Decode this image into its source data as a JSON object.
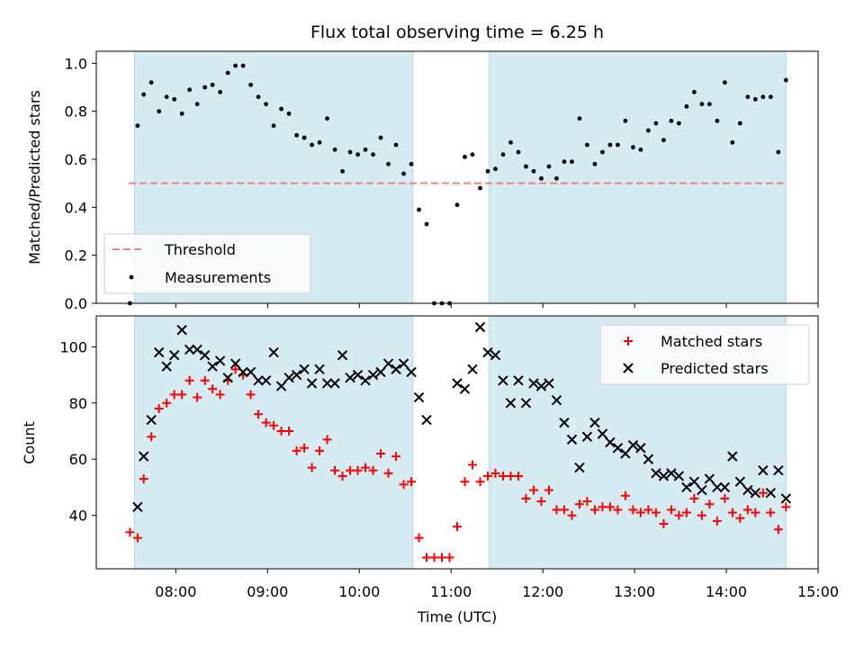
{
  "chart_data": [
    {
      "type": "scatter",
      "title": "Flux total observing time = 6.25 h",
      "xlabel": "",
      "ylabel": "Matched/Predicted stars",
      "xlim": [
        "07:08",
        "15:00"
      ],
      "ylim": [
        0,
        1.05
      ],
      "yticks": [
        "0.0",
        "0.2",
        "0.4",
        "0.6",
        "0.8",
        "1.0"
      ],
      "legend_position": "lower-left",
      "grid": false,
      "shaded_intervals": [
        [
          "07:33",
          "10:35"
        ],
        [
          "11:25",
          "14:39"
        ]
      ],
      "threshold": {
        "name": "Threshold",
        "value": 0.5,
        "color": "#f08080",
        "style": "dashed"
      },
      "series": [
        {
          "name": "Measurements",
          "marker": "dot",
          "color": "#000000",
          "points": [
            [
              "07:30",
              0.0
            ],
            [
              "07:35",
              0.74
            ],
            [
              "07:39",
              0.87
            ],
            [
              "07:44",
              0.92
            ],
            [
              "07:49",
              0.8
            ],
            [
              "07:54",
              0.86
            ],
            [
              "07:59",
              0.85
            ],
            [
              "08:04",
              0.79
            ],
            [
              "08:09",
              0.89
            ],
            [
              "08:14",
              0.83
            ],
            [
              "08:19",
              0.9
            ],
            [
              "08:24",
              0.91
            ],
            [
              "08:29",
              0.88
            ],
            [
              "08:34",
              0.96
            ],
            [
              "08:39",
              0.99
            ],
            [
              "08:44",
              0.99
            ],
            [
              "08:49",
              0.91
            ],
            [
              "08:54",
              0.86
            ],
            [
              "08:59",
              0.83
            ],
            [
              "09:04",
              0.74
            ],
            [
              "09:09",
              0.81
            ],
            [
              "09:14",
              0.79
            ],
            [
              "09:19",
              0.7
            ],
            [
              "09:24",
              0.69
            ],
            [
              "09:29",
              0.66
            ],
            [
              "09:34",
              0.67
            ],
            [
              "09:39",
              0.77
            ],
            [
              "09:44",
              0.64
            ],
            [
              "09:49",
              0.55
            ],
            [
              "09:54",
              0.63
            ],
            [
              "09:59",
              0.62
            ],
            [
              "10:04",
              0.64
            ],
            [
              "10:09",
              0.62
            ],
            [
              "10:14",
              0.69
            ],
            [
              "10:19",
              0.58
            ],
            [
              "10:24",
              0.66
            ],
            [
              "10:29",
              0.54
            ],
            [
              "10:34",
              0.58
            ],
            [
              "10:39",
              0.39
            ],
            [
              "10:44",
              0.33
            ],
            [
              "10:49",
              0.0
            ],
            [
              "10:54",
              0.0
            ],
            [
              "10:59",
              0.0
            ],
            [
              "11:04",
              0.41
            ],
            [
              "11:09",
              0.61
            ],
            [
              "11:14",
              0.62
            ],
            [
              "11:19",
              0.48
            ],
            [
              "11:24",
              0.55
            ],
            [
              "11:29",
              0.56
            ],
            [
              "11:34",
              0.62
            ],
            [
              "11:39",
              0.67
            ],
            [
              "11:44",
              0.63
            ],
            [
              "11:49",
              0.57
            ],
            [
              "11:54",
              0.55
            ],
            [
              "11:59",
              0.52
            ],
            [
              "12:04",
              0.57
            ],
            [
              "12:09",
              0.52
            ],
            [
              "12:14",
              0.59
            ],
            [
              "12:19",
              0.59
            ],
            [
              "12:24",
              0.77
            ],
            [
              "12:29",
              0.66
            ],
            [
              "12:34",
              0.58
            ],
            [
              "12:39",
              0.63
            ],
            [
              "12:44",
              0.66
            ],
            [
              "12:49",
              0.66
            ],
            [
              "12:54",
              0.76
            ],
            [
              "12:59",
              0.65
            ],
            [
              "13:04",
              0.64
            ],
            [
              "13:09",
              0.72
            ],
            [
              "13:14",
              0.75
            ],
            [
              "13:19",
              0.68
            ],
            [
              "13:24",
              0.76
            ],
            [
              "13:29",
              0.75
            ],
            [
              "13:34",
              0.82
            ],
            [
              "13:39",
              0.88
            ],
            [
              "13:44",
              0.83
            ],
            [
              "13:49",
              0.83
            ],
            [
              "13:54",
              0.76
            ],
            [
              "13:59",
              0.92
            ],
            [
              "14:04",
              0.67
            ],
            [
              "14:09",
              0.75
            ],
            [
              "14:14",
              0.86
            ],
            [
              "14:19",
              0.85
            ],
            [
              "14:24",
              0.86
            ],
            [
              "14:29",
              0.86
            ],
            [
              "14:34",
              0.63
            ],
            [
              "14:39",
              0.93
            ]
          ]
        }
      ]
    },
    {
      "type": "scatter",
      "title": "",
      "xlabel": "Time (UTC)",
      "ylabel": "Count",
      "xlim": [
        "07:08",
        "15:00"
      ],
      "ylim": [
        21,
        111
      ],
      "xticks": [
        "08:00",
        "09:00",
        "10:00",
        "11:00",
        "12:00",
        "13:00",
        "14:00",
        "15:00"
      ],
      "yticks": [
        "40",
        "60",
        "80",
        "100"
      ],
      "legend_position": "top-right",
      "grid": false,
      "shaded_intervals": [
        [
          "07:33",
          "10:35"
        ],
        [
          "11:25",
          "14:39"
        ]
      ],
      "series": [
        {
          "name": "Matched stars",
          "marker": "plus",
          "color": "#ff0000",
          "points": [
            [
              "07:30",
              34
            ],
            [
              "07:35",
              32
            ],
            [
              "07:39",
              53
            ],
            [
              "07:44",
              68
            ],
            [
              "07:49",
              78
            ],
            [
              "07:54",
              80
            ],
            [
              "07:59",
              83
            ],
            [
              "08:04",
              83
            ],
            [
              "08:09",
              88
            ],
            [
              "08:14",
              82
            ],
            [
              "08:19",
              88
            ],
            [
              "08:24",
              85
            ],
            [
              "08:29",
              83
            ],
            [
              "08:34",
              88
            ],
            [
              "08:39",
              92
            ],
            [
              "08:44",
              90
            ],
            [
              "08:49",
              83
            ],
            [
              "08:54",
              76
            ],
            [
              "08:59",
              73
            ],
            [
              "09:04",
              72
            ],
            [
              "09:09",
              70
            ],
            [
              "09:14",
              70
            ],
            [
              "09:19",
              63
            ],
            [
              "09:24",
              64
            ],
            [
              "09:29",
              57
            ],
            [
              "09:34",
              63
            ],
            [
              "09:39",
              67
            ],
            [
              "09:44",
              56
            ],
            [
              "09:49",
              54
            ],
            [
              "09:54",
              56
            ],
            [
              "09:59",
              56
            ],
            [
              "10:04",
              57
            ],
            [
              "10:09",
              56
            ],
            [
              "10:14",
              62
            ],
            [
              "10:19",
              55
            ],
            [
              "10:24",
              61
            ],
            [
              "10:29",
              51
            ],
            [
              "10:34",
              52
            ],
            [
              "10:39",
              32
            ],
            [
              "10:44",
              25
            ],
            [
              "10:49",
              25
            ],
            [
              "10:54",
              25
            ],
            [
              "10:59",
              25
            ],
            [
              "11:04",
              36
            ],
            [
              "11:09",
              52
            ],
            [
              "11:14",
              58
            ],
            [
              "11:19",
              52
            ],
            [
              "11:24",
              54
            ],
            [
              "11:29",
              55
            ],
            [
              "11:34",
              54
            ],
            [
              "11:39",
              54
            ],
            [
              "11:44",
              54
            ],
            [
              "11:49",
              46
            ],
            [
              "11:54",
              49
            ],
            [
              "11:59",
              45
            ],
            [
              "12:04",
              49
            ],
            [
              "12:09",
              42
            ],
            [
              "12:14",
              42
            ],
            [
              "12:19",
              40
            ],
            [
              "12:24",
              44
            ],
            [
              "12:29",
              45
            ],
            [
              "12:34",
              42
            ],
            [
              "12:39",
              43
            ],
            [
              "12:44",
              43
            ],
            [
              "12:49",
              42
            ],
            [
              "12:54",
              47
            ],
            [
              "12:59",
              42
            ],
            [
              "13:04",
              41
            ],
            [
              "13:09",
              42
            ],
            [
              "13:14",
              41
            ],
            [
              "13:19",
              37
            ],
            [
              "13:24",
              42
            ],
            [
              "13:29",
              40
            ],
            [
              "13:34",
              41
            ],
            [
              "13:39",
              46
            ],
            [
              "13:44",
              40
            ],
            [
              "13:49",
              44
            ],
            [
              "13:54",
              38
            ],
            [
              "13:59",
              46
            ],
            [
              "14:04",
              41
            ],
            [
              "14:09",
              39
            ],
            [
              "14:14",
              42
            ],
            [
              "14:19",
              41
            ],
            [
              "14:24",
              48
            ],
            [
              "14:29",
              41
            ],
            [
              "14:34",
              35
            ],
            [
              "14:39",
              43
            ]
          ]
        },
        {
          "name": "Predicted stars",
          "marker": "x",
          "color": "#000000",
          "points": [
            [
              "07:35",
              43
            ],
            [
              "07:39",
              61
            ],
            [
              "07:44",
              74
            ],
            [
              "07:49",
              98
            ],
            [
              "07:54",
              93
            ],
            [
              "07:59",
              97
            ],
            [
              "08:04",
              106
            ],
            [
              "08:09",
              99
            ],
            [
              "08:14",
              99
            ],
            [
              "08:19",
              97
            ],
            [
              "08:24",
              93
            ],
            [
              "08:29",
              95
            ],
            [
              "08:34",
              89
            ],
            [
              "08:39",
              94
            ],
            [
              "08:44",
              91
            ],
            [
              "08:49",
              91
            ],
            [
              "08:54",
              88
            ],
            [
              "08:59",
              88
            ],
            [
              "09:04",
              98
            ],
            [
              "09:09",
              86
            ],
            [
              "09:14",
              89
            ],
            [
              "09:19",
              90
            ],
            [
              "09:24",
              92
            ],
            [
              "09:29",
              87
            ],
            [
              "09:34",
              92
            ],
            [
              "09:39",
              87
            ],
            [
              "09:44",
              87
            ],
            [
              "09:49",
              97
            ],
            [
              "09:54",
              89
            ],
            [
              "09:59",
              90
            ],
            [
              "10:04",
              88
            ],
            [
              "10:09",
              90
            ],
            [
              "10:14",
              91
            ],
            [
              "10:19",
              94
            ],
            [
              "10:24",
              92
            ],
            [
              "10:29",
              94
            ],
            [
              "10:34",
              91
            ],
            [
              "10:39",
              82
            ],
            [
              "10:44",
              74
            ],
            [
              "11:04",
              87
            ],
            [
              "11:09",
              85
            ],
            [
              "11:14",
              92
            ],
            [
              "11:19",
              107
            ],
            [
              "11:24",
              98
            ],
            [
              "11:29",
              97
            ],
            [
              "11:34",
              88
            ],
            [
              "11:39",
              80
            ],
            [
              "11:44",
              88
            ],
            [
              "11:49",
              80
            ],
            [
              "11:54",
              87
            ],
            [
              "11:59",
              86
            ],
            [
              "12:04",
              87
            ],
            [
              "12:09",
              81
            ],
            [
              "12:14",
              73
            ],
            [
              "12:19",
              67
            ],
            [
              "12:24",
              57
            ],
            [
              "12:29",
              68
            ],
            [
              "12:34",
              73
            ],
            [
              "12:39",
              69
            ],
            [
              "12:44",
              66
            ],
            [
              "12:49",
              64
            ],
            [
              "12:54",
              62
            ],
            [
              "12:59",
              65
            ],
            [
              "13:04",
              64
            ],
            [
              "13:09",
              60
            ],
            [
              "13:14",
              55
            ],
            [
              "13:19",
              54
            ],
            [
              "13:24",
              55
            ],
            [
              "13:29",
              54
            ],
            [
              "13:34",
              50
            ],
            [
              "13:39",
              52
            ],
            [
              "13:44",
              49
            ],
            [
              "13:49",
              53
            ],
            [
              "13:54",
              50
            ],
            [
              "13:59",
              50
            ],
            [
              "14:04",
              61
            ],
            [
              "14:09",
              52
            ],
            [
              "14:14",
              49
            ],
            [
              "14:19",
              48
            ],
            [
              "14:24",
              56
            ],
            [
              "14:29",
              48
            ],
            [
              "14:34",
              56
            ],
            [
              "14:39",
              46
            ]
          ]
        }
      ]
    }
  ],
  "colors": {
    "shade": "#add8e6",
    "threshold": "#f08080",
    "matched": "#ff0000",
    "predicted": "#000000"
  }
}
